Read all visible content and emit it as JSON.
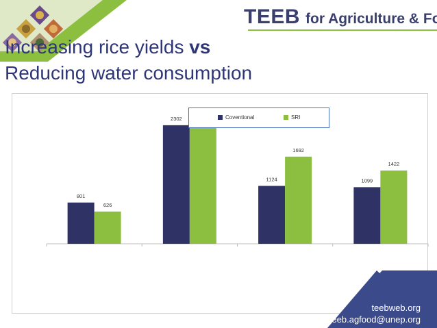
{
  "header": {
    "brand_bold": "TEEB",
    "brand_rest": "for Agriculture & Food"
  },
  "title": {
    "line1_prefix": "Increasing rice yields ",
    "line1_bold": "vs",
    "line2": "Reducing water consumption"
  },
  "chart_data": {
    "type": "bar",
    "title": "",
    "xlabel": "",
    "ylabel": "",
    "categories": [
      "",
      "",
      "",
      ""
    ],
    "series": [
      {
        "name": "Coventional",
        "color": "#2f3264",
        "values": [
          801,
          2302,
          1124,
          1099
        ]
      },
      {
        "name": "SRI",
        "color": "#8cbf3f",
        "values": [
          626,
          2422,
          1692,
          1422
        ]
      }
    ],
    "ylim": [
      0,
      2500
    ],
    "grid": false,
    "legend_position": "top-center"
  },
  "contact": {
    "website": "teebweb.org",
    "email": "teeb.agfood@unep.org"
  },
  "colors": {
    "brand_navy": "#3a3f6e",
    "brand_green": "#8cbf3f",
    "title_blue": "#2f3677",
    "contact_bg": "#3b4a8a"
  }
}
